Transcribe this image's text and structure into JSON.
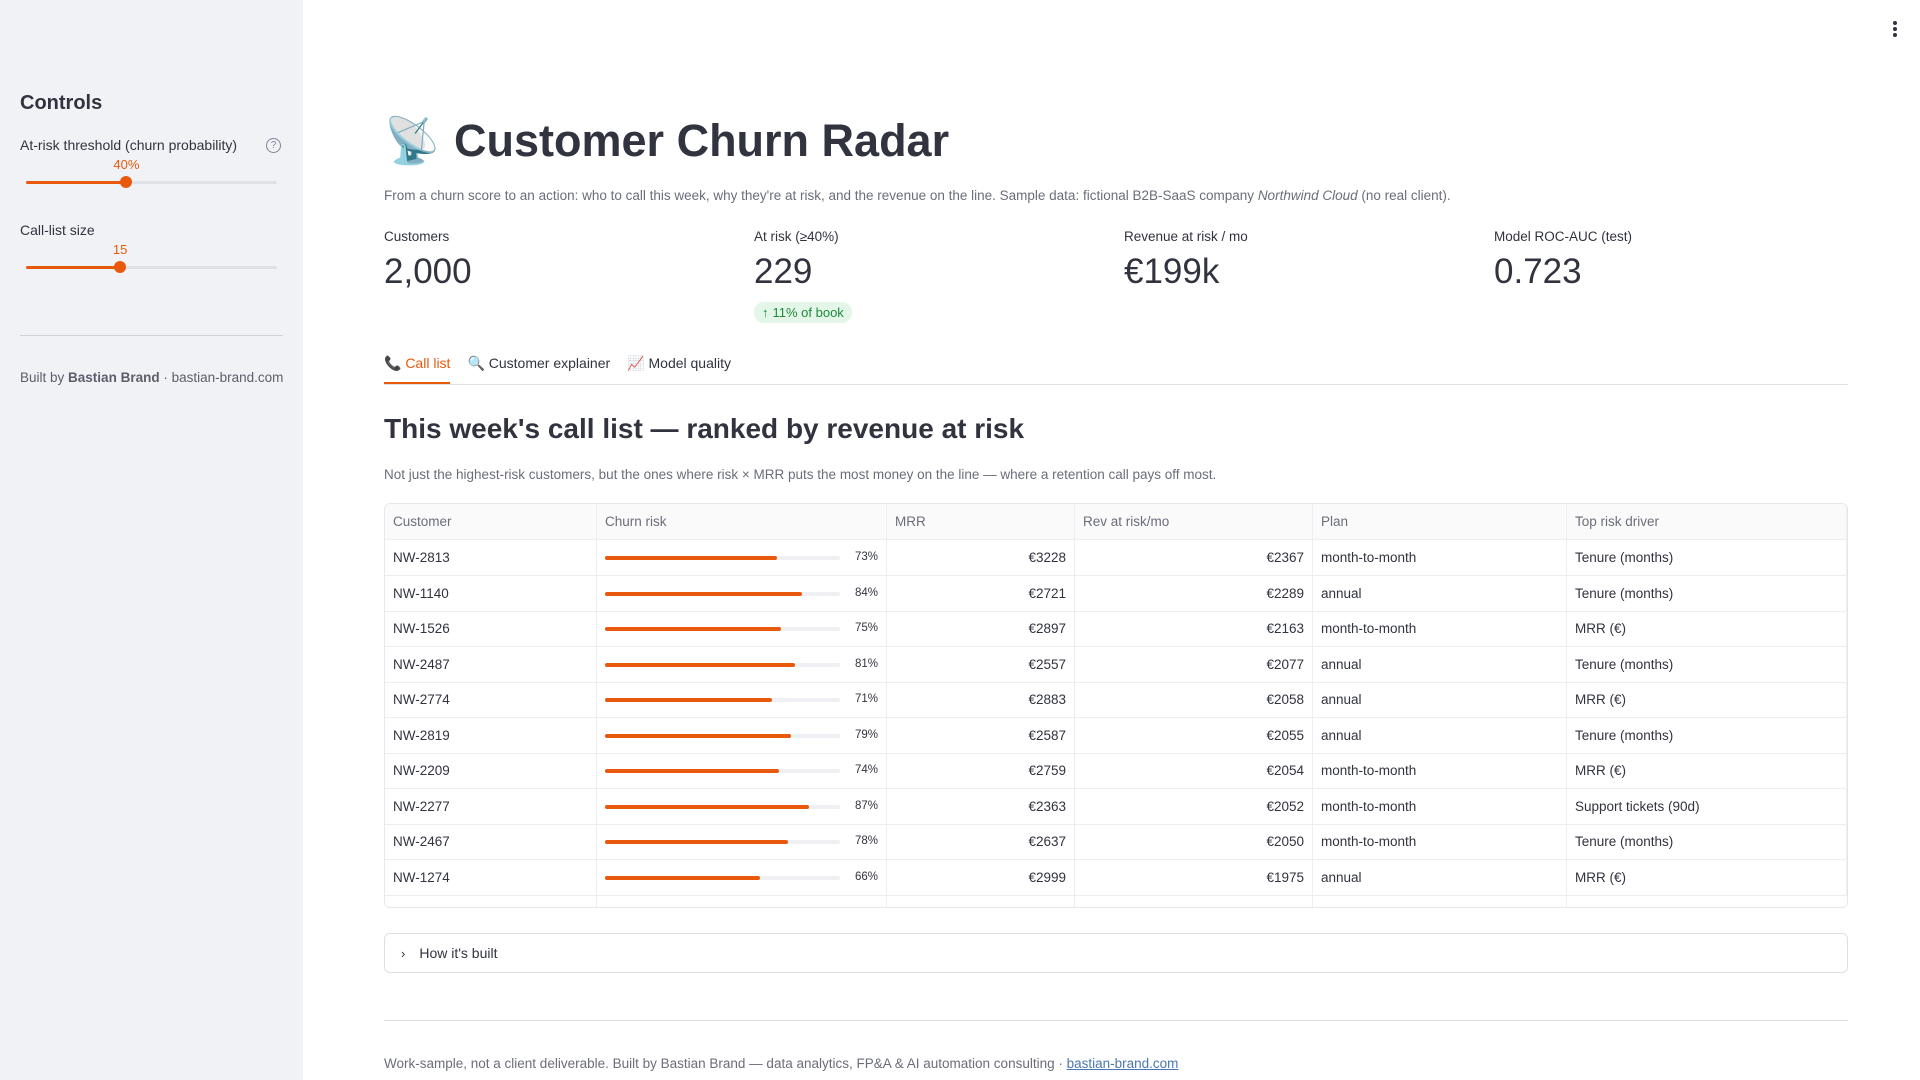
{
  "sidebar": {
    "title": "Controls",
    "sliders": [
      {
        "label": "At-risk threshold (churn probability)",
        "value": "40%",
        "has_help": true
      },
      {
        "label": "Call-list size",
        "value": "15",
        "has_help": false
      }
    ],
    "footer": {
      "prefix": "Built by",
      "name": "Bastian Brand",
      "suffix": "· bastian-brand.com"
    }
  },
  "header": {
    "icon": "📡",
    "title": "Customer Churn Radar",
    "subtitle": {
      "before": "From a churn score to an action: who to call this week, why they're at risk, and the revenue on the line. Sample data: fictional B2B-SaaS company",
      "company": "Northwind Cloud",
      "after": "(no real client)."
    }
  },
  "metrics": [
    {
      "label": "Customers",
      "value": "2,000"
    },
    {
      "label": "At risk (≥40%)",
      "value": "229",
      "delta": "11% of book"
    },
    {
      "label": "Revenue at risk / mo",
      "value": "€199k"
    },
    {
      "label": "Model ROC-AUC (test)",
      "value": "0.723"
    }
  ],
  "tabs": [
    "📞 Call list",
    "🔍 Customer explainer",
    "📈 Model quality"
  ],
  "section": {
    "title": "This week's call list — ranked by revenue at risk",
    "description": "Not just the highest-risk customers, but the ones where risk × MRR puts the most money on the line — where a retention call pays off most."
  },
  "table": {
    "columns": [
      "Customer",
      "Churn risk",
      "MRR",
      "Rev at risk/mo",
      "Plan",
      "Top risk driver"
    ],
    "rows": [
      [
        "NW-2813",
        "73%",
        "€3228",
        "€2367",
        "month-to-month",
        "Tenure (months)"
      ],
      [
        "NW-1140",
        "84%",
        "€2721",
        "€2289",
        "annual",
        "Tenure (months)"
      ],
      [
        "NW-1526",
        "75%",
        "€2897",
        "€2163",
        "month-to-month",
        "MRR (€)"
      ],
      [
        "NW-2487",
        "81%",
        "€2557",
        "€2077",
        "annual",
        "Tenure (months)"
      ],
      [
        "NW-2774",
        "71%",
        "€2883",
        "€2058",
        "annual",
        "MRR (€)"
      ],
      [
        "NW-2819",
        "79%",
        "€2587",
        "€2055",
        "annual",
        "Tenure (months)"
      ],
      [
        "NW-2209",
        "74%",
        "€2759",
        "€2054",
        "month-to-month",
        "MRR (€)"
      ],
      [
        "NW-2277",
        "87%",
        "€2363",
        "€2052",
        "month-to-month",
        "Support tickets (90d)"
      ],
      [
        "NW-2467",
        "78%",
        "€2637",
        "€2050",
        "month-to-month",
        "Tenure (months)"
      ],
      [
        "NW-1274",
        "66%",
        "€2999",
        "€1975",
        "annual",
        "MRR (€)"
      ]
    ]
  },
  "expander": "How it's built",
  "footer": {
    "text": "Work-sample, not a client deliverable. Built by Bastian Brand — data analytics, FP&A & AI automation consulting ·",
    "link": "bastian-brand.com"
  }
}
